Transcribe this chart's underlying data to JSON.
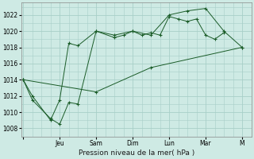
{
  "xlabel": "Pression niveau de la mer( hPa )",
  "background_color": "#ceeae4",
  "grid_color": "#a8cfc8",
  "line_color": "#1a5c28",
  "ylim": [
    1007,
    1023.5
  ],
  "yticks": [
    1008,
    1010,
    1012,
    1014,
    1016,
    1018,
    1020,
    1022
  ],
  "x_tick_positions": [
    0,
    2,
    4,
    6,
    8,
    10,
    12
  ],
  "x_tick_labels": [
    "",
    "Jeu",
    "Sam",
    "Dim",
    "Lun",
    "Mar",
    "M"
  ],
  "xlim": [
    -0.1,
    12.5
  ],
  "series1_x": [
    0,
    0.5,
    1.5,
    2.0,
    2.5,
    3.0,
    4.0,
    5.0,
    5.5,
    6.0,
    6.5,
    7.0,
    7.5,
    8.0,
    8.5,
    9.0,
    9.5,
    10.0,
    10.5,
    11.0
  ],
  "series1_y": [
    1014.0,
    1012.0,
    1009.0,
    1011.5,
    1018.5,
    1018.2,
    1020.0,
    1019.2,
    1019.5,
    1020.0,
    1019.5,
    1019.8,
    1019.5,
    1021.8,
    1021.5,
    1021.2,
    1021.5,
    1019.5,
    1019.0,
    1019.8
  ],
  "series2_x": [
    0,
    0.5,
    1.5,
    2.0,
    2.5,
    3.0,
    4.0,
    5.0,
    6.0,
    7.0,
    8.0,
    9.0,
    10.0,
    11.0,
    12.0
  ],
  "series2_y": [
    1014.0,
    1011.5,
    1009.2,
    1008.5,
    1011.2,
    1011.0,
    1020.0,
    1019.5,
    1020.0,
    1019.5,
    1022.0,
    1022.5,
    1022.8,
    1020.0,
    1018.0
  ],
  "series3_x": [
    0,
    4,
    7,
    12
  ],
  "series3_y": [
    1014.0,
    1012.5,
    1015.5,
    1018.0
  ]
}
